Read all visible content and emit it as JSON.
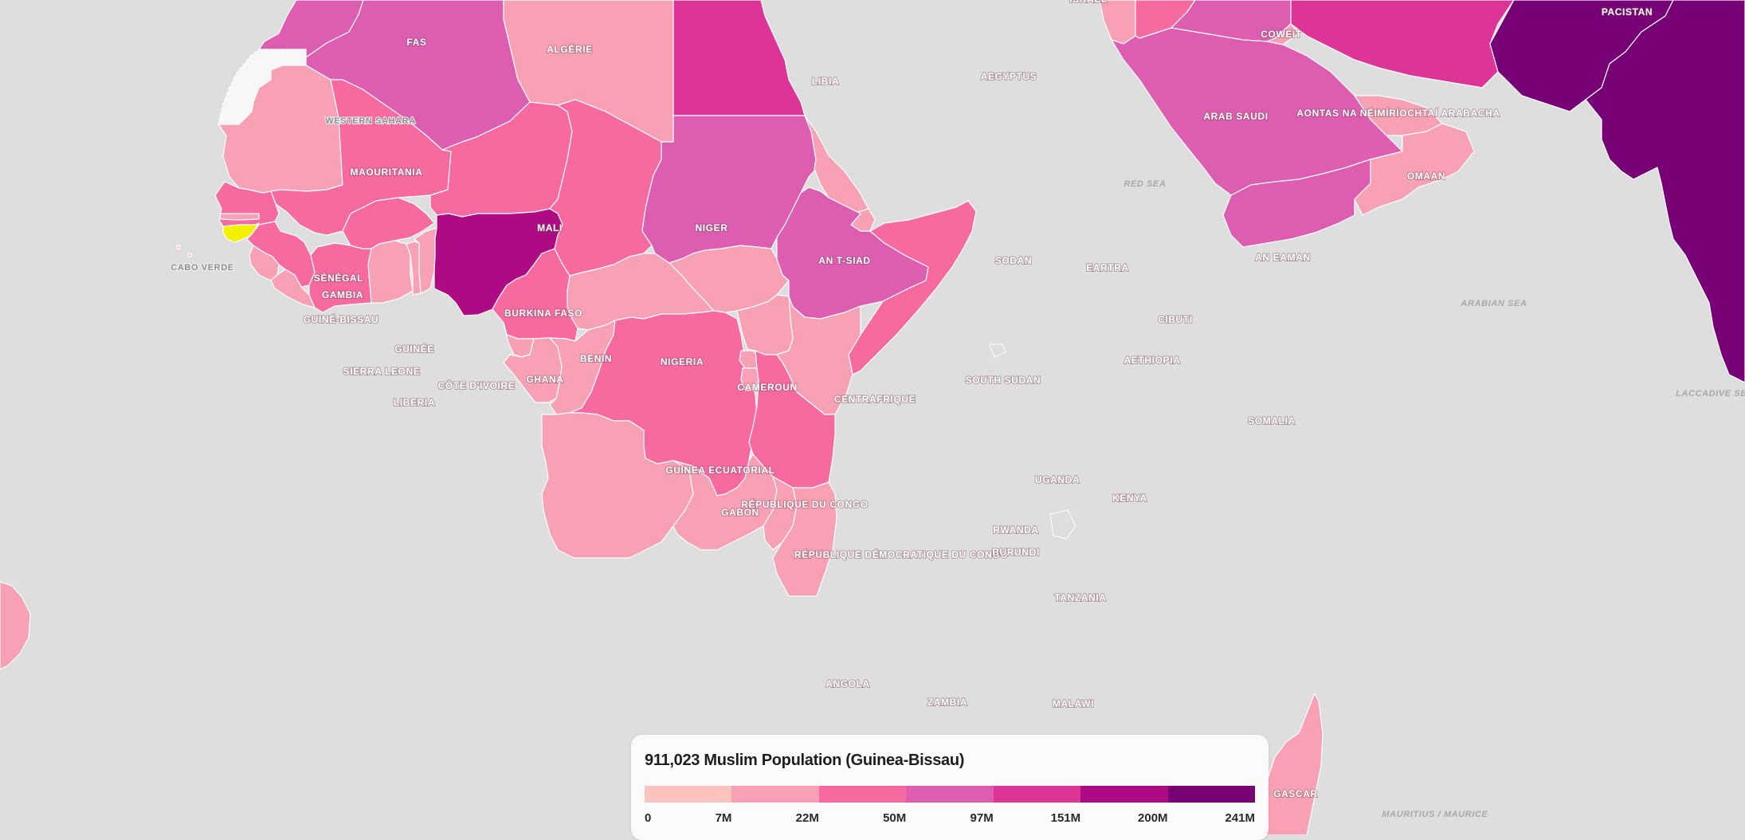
{
  "legend": {
    "title": "911,023 Muslim Population (Guinea-Bissau)",
    "colors": [
      "#fcc3bc",
      "#f9a1b4",
      "#f76aa0",
      "#dd5db0",
      "#dc3597",
      "#ae0a83",
      "#780077"
    ],
    "ticks": [
      "0",
      "7M",
      "22M",
      "50M",
      "97M",
      "151M",
      "200M",
      "241M"
    ]
  },
  "highlight_color": "#f4f100",
  "countries": [
    {
      "key": "fas",
      "name": "FAS",
      "class": 3,
      "interactable": true
    },
    {
      "key": "algerie",
      "name": "ALGÉRIE",
      "class": 3,
      "interactable": true
    },
    {
      "key": "libia",
      "name": "LIBIA",
      "class": 1,
      "interactable": true
    },
    {
      "key": "aegyptus",
      "name": "AEGYPTUS",
      "class": 4,
      "interactable": true
    },
    {
      "key": "western-sahara",
      "name": "WESTERN SAHARA",
      "class": -1,
      "interactable": true
    },
    {
      "key": "maouritania",
      "name": "MAOURITANIA",
      "class": 1,
      "interactable": true
    },
    {
      "key": "mali",
      "name": "MALI",
      "class": 2,
      "interactable": true
    },
    {
      "key": "niger",
      "name": "NIGER",
      "class": 2,
      "interactable": true
    },
    {
      "key": "tchad",
      "name": "AN T-SIAD",
      "class": 2,
      "interactable": true
    },
    {
      "key": "sodan",
      "name": "SODAN",
      "class": 3,
      "interactable": true
    },
    {
      "key": "senegal",
      "name": "SÉNÉGAL",
      "class": 2,
      "interactable": true
    },
    {
      "key": "gambia",
      "name": "GAMBIA",
      "class": 1,
      "interactable": true
    },
    {
      "key": "guinea-bissau",
      "name": "GUINÉ-BISSAU",
      "class": -2,
      "interactable": true
    },
    {
      "key": "guinee",
      "name": "GUINÉE",
      "class": 2,
      "interactable": true
    },
    {
      "key": "sierra-leone",
      "name": "SIERRA LEONE",
      "class": 1,
      "interactable": true
    },
    {
      "key": "liberia",
      "name": "LIBERIA",
      "class": 1,
      "interactable": true
    },
    {
      "key": "cote-divoire",
      "name": "CÔTE D'IVOIRE",
      "class": 2,
      "interactable": true
    },
    {
      "key": "burkina-faso",
      "name": "BURKINA FASO",
      "class": 2,
      "interactable": true
    },
    {
      "key": "ghana",
      "name": "GHANA",
      "class": 1,
      "interactable": true
    },
    {
      "key": "togo",
      "name": "",
      "class": 1,
      "interactable": true
    },
    {
      "key": "benin",
      "name": "BENIN",
      "class": 1,
      "interactable": true
    },
    {
      "key": "nigeria",
      "name": "NIGERIA",
      "class": 5,
      "interactable": true
    },
    {
      "key": "cameroun",
      "name": "CAMEROUN",
      "class": 2,
      "interactable": true
    },
    {
      "key": "centrafrique",
      "name": "CENTRAFRIQUE",
      "class": 1,
      "interactable": true
    },
    {
      "key": "south-sudan",
      "name": "SOUTH SUDAN",
      "class": 1,
      "interactable": true
    },
    {
      "key": "eartra",
      "name": "EARTRA",
      "class": 1,
      "interactable": true
    },
    {
      "key": "cibuti",
      "name": "CIBUTI",
      "class": 1,
      "interactable": true
    },
    {
      "key": "aethiopia",
      "name": "AETHIOPIA",
      "class": 3,
      "interactable": true
    },
    {
      "key": "somalia",
      "name": "SOMALIA",
      "class": 2,
      "interactable": true
    },
    {
      "key": "guinea-ecuatorial",
      "name": "GUINEA ECUATORIAL",
      "class": 1,
      "interactable": true
    },
    {
      "key": "gabon",
      "name": "GABON",
      "class": 1,
      "interactable": true
    },
    {
      "key": "republique-du-congo",
      "name": "RÉPUBLIQUE DU CONGO",
      "class": 1,
      "interactable": true
    },
    {
      "key": "rdc",
      "name": "RÉPUBLIQUE DÉMOCRATIQUE DU CONGO",
      "class": 2,
      "interactable": true
    },
    {
      "key": "uganda",
      "name": "UGANDA",
      "class": 1,
      "interactable": true
    },
    {
      "key": "kenya",
      "name": "KENYA",
      "class": 1,
      "interactable": true
    },
    {
      "key": "rwanda",
      "name": "RWANDA",
      "class": 1,
      "interactable": true
    },
    {
      "key": "burundi",
      "name": "BURUNDI",
      "class": 1,
      "interactable": true
    },
    {
      "key": "tanzania",
      "name": "TANZANIA",
      "class": 2,
      "interactable": true
    },
    {
      "key": "angola",
      "name": "ANGOLA",
      "class": 1,
      "interactable": true
    },
    {
      "key": "zambia",
      "name": "ZAMBIA",
      "class": 1,
      "interactable": true
    },
    {
      "key": "malawi",
      "name": "MALAWI",
      "class": 1,
      "interactable": true
    },
    {
      "key": "mozambique",
      "name": "",
      "class": 1,
      "interactable": true
    },
    {
      "key": "madagascar",
      "name": "GASCAR",
      "class": 1,
      "interactable": true
    },
    {
      "key": "israel",
      "name": "ISRAEL",
      "class": 1,
      "interactable": true
    },
    {
      "key": "jordan",
      "name": "",
      "class": 2,
      "interactable": true
    },
    {
      "key": "iraq",
      "name": "",
      "class": 3,
      "interactable": true
    },
    {
      "key": "iran",
      "name": "",
      "class": 4,
      "interactable": true
    },
    {
      "key": "coweit",
      "name": "COWEIT",
      "class": 1,
      "interactable": true
    },
    {
      "key": "arab-saudi",
      "name": "ARAB SAUDI",
      "class": 3,
      "interactable": true
    },
    {
      "key": "uae",
      "name": "AONTAS NA NÉIMÍRÍOCHTAÍ ARABACHA",
      "class": 1,
      "interactable": true
    },
    {
      "key": "omaan",
      "name": "OMAAN",
      "class": 1,
      "interactable": true
    },
    {
      "key": "an-eaman",
      "name": "AN EAMAN",
      "class": 3,
      "interactable": true
    },
    {
      "key": "pacistan",
      "name": "PACISTAN",
      "class": 6,
      "interactable": true
    },
    {
      "key": "india",
      "name": "",
      "class": 6,
      "interactable": true
    },
    {
      "key": "cabo-verde",
      "name": "CABO VERDE",
      "class": 0,
      "interactable": false
    },
    {
      "key": "atlantic-islands",
      "name": "",
      "class": 1,
      "interactable": true
    }
  ],
  "places": [
    {
      "key": "red-sea",
      "name": "RED SEA"
    },
    {
      "key": "arabian-sea",
      "name": "ARABIAN SEA"
    },
    {
      "key": "laccadive-sea",
      "name": "LACCADIVE SEA"
    },
    {
      "key": "mauritius",
      "name": "MAURITIUS / MAURICE"
    }
  ]
}
